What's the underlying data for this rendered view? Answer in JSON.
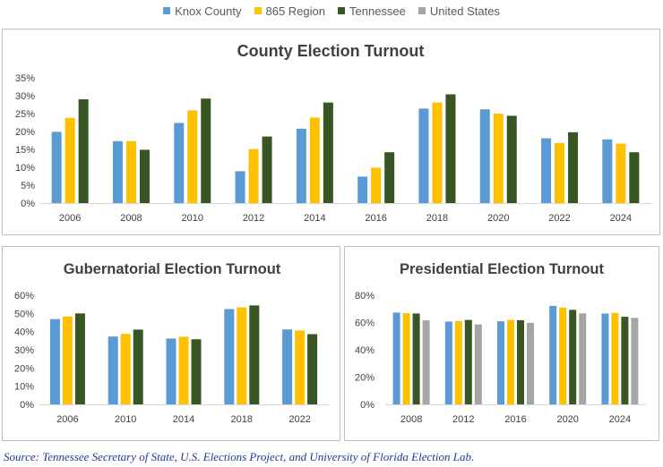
{
  "legend": [
    {
      "name": "Knox County",
      "color": "#5b9bd5"
    },
    {
      "name": "865 Region",
      "color": "#ffc000"
    },
    {
      "name": "Tennessee",
      "color": "#375623"
    },
    {
      "name": "United States",
      "color": "#a5a5a5"
    }
  ],
  "source": "Source: Tennessee Secretary of State, U.S. Elections Project, and University of Florida Election Lab.",
  "chart_data": [
    {
      "type": "bar",
      "title": "County Election Turnout",
      "categories": [
        "2006",
        "2008",
        "2010",
        "2012",
        "2014",
        "2016",
        "2018",
        "2020",
        "2022",
        "2024"
      ],
      "ylim": [
        0,
        35
      ],
      "yticks": [
        "0%",
        "5%",
        "10%",
        "15%",
        "20%",
        "25%",
        "30%",
        "35%"
      ],
      "grid": false,
      "legend": "top",
      "series": [
        {
          "name": "Knox County",
          "color": "#5b9bd5",
          "values": [
            19.9,
            17.3,
            22.4,
            8.9,
            20.8,
            7.4,
            26.4,
            26.2,
            18.1,
            17.8
          ]
        },
        {
          "name": "865 Region",
          "color": "#ffc000",
          "values": [
            23.8,
            17.3,
            25.9,
            15.1,
            23.9,
            9.9,
            28.1,
            25.0,
            16.8,
            16.6
          ]
        },
        {
          "name": "Tennessee",
          "color": "#375623",
          "values": [
            29.0,
            14.9,
            29.2,
            18.6,
            28.1,
            14.2,
            30.4,
            24.4,
            19.8,
            14.2
          ]
        }
      ]
    },
    {
      "type": "bar",
      "title": "Gubernatorial Election Turnout",
      "categories": [
        "2006",
        "2010",
        "2014",
        "2018",
        "2022"
      ],
      "ylim": [
        0,
        60
      ],
      "yticks": [
        "0%",
        "10%",
        "20%",
        "30%",
        "40%",
        "50%",
        "60%"
      ],
      "grid": false,
      "series": [
        {
          "name": "Knox County",
          "color": "#5b9bd5",
          "values": [
            46.9,
            37.3,
            36.2,
            52.4,
            41.2
          ]
        },
        {
          "name": "865 Region",
          "color": "#ffc000",
          "values": [
            48.3,
            38.8,
            37.2,
            53.3,
            40.6
          ]
        },
        {
          "name": "Tennessee",
          "color": "#375623",
          "values": [
            50.0,
            41.1,
            35.8,
            54.4,
            38.6
          ]
        }
      ]
    },
    {
      "type": "bar",
      "title": "Presidential Election Turnout",
      "categories": [
        "2008",
        "2012",
        "2016",
        "2020",
        "2024"
      ],
      "ylim": [
        0,
        80
      ],
      "yticks": [
        "0%",
        "20%",
        "40%",
        "60%",
        "80%"
      ],
      "grid": false,
      "series": [
        {
          "name": "Knox County",
          "color": "#5b9bd5",
          "values": [
            67.3,
            60.7,
            60.9,
            72.2,
            66.6
          ]
        },
        {
          "name": "865 Region",
          "color": "#ffc000",
          "values": [
            66.8,
            61.0,
            61.9,
            71.0,
            67.1
          ]
        },
        {
          "name": "Tennessee",
          "color": "#375623",
          "values": [
            66.6,
            61.9,
            61.7,
            69.3,
            64.2
          ]
        },
        {
          "name": "United States",
          "color": "#a5a5a5",
          "values": [
            61.6,
            58.6,
            59.8,
            66.7,
            63.4
          ]
        }
      ]
    }
  ]
}
